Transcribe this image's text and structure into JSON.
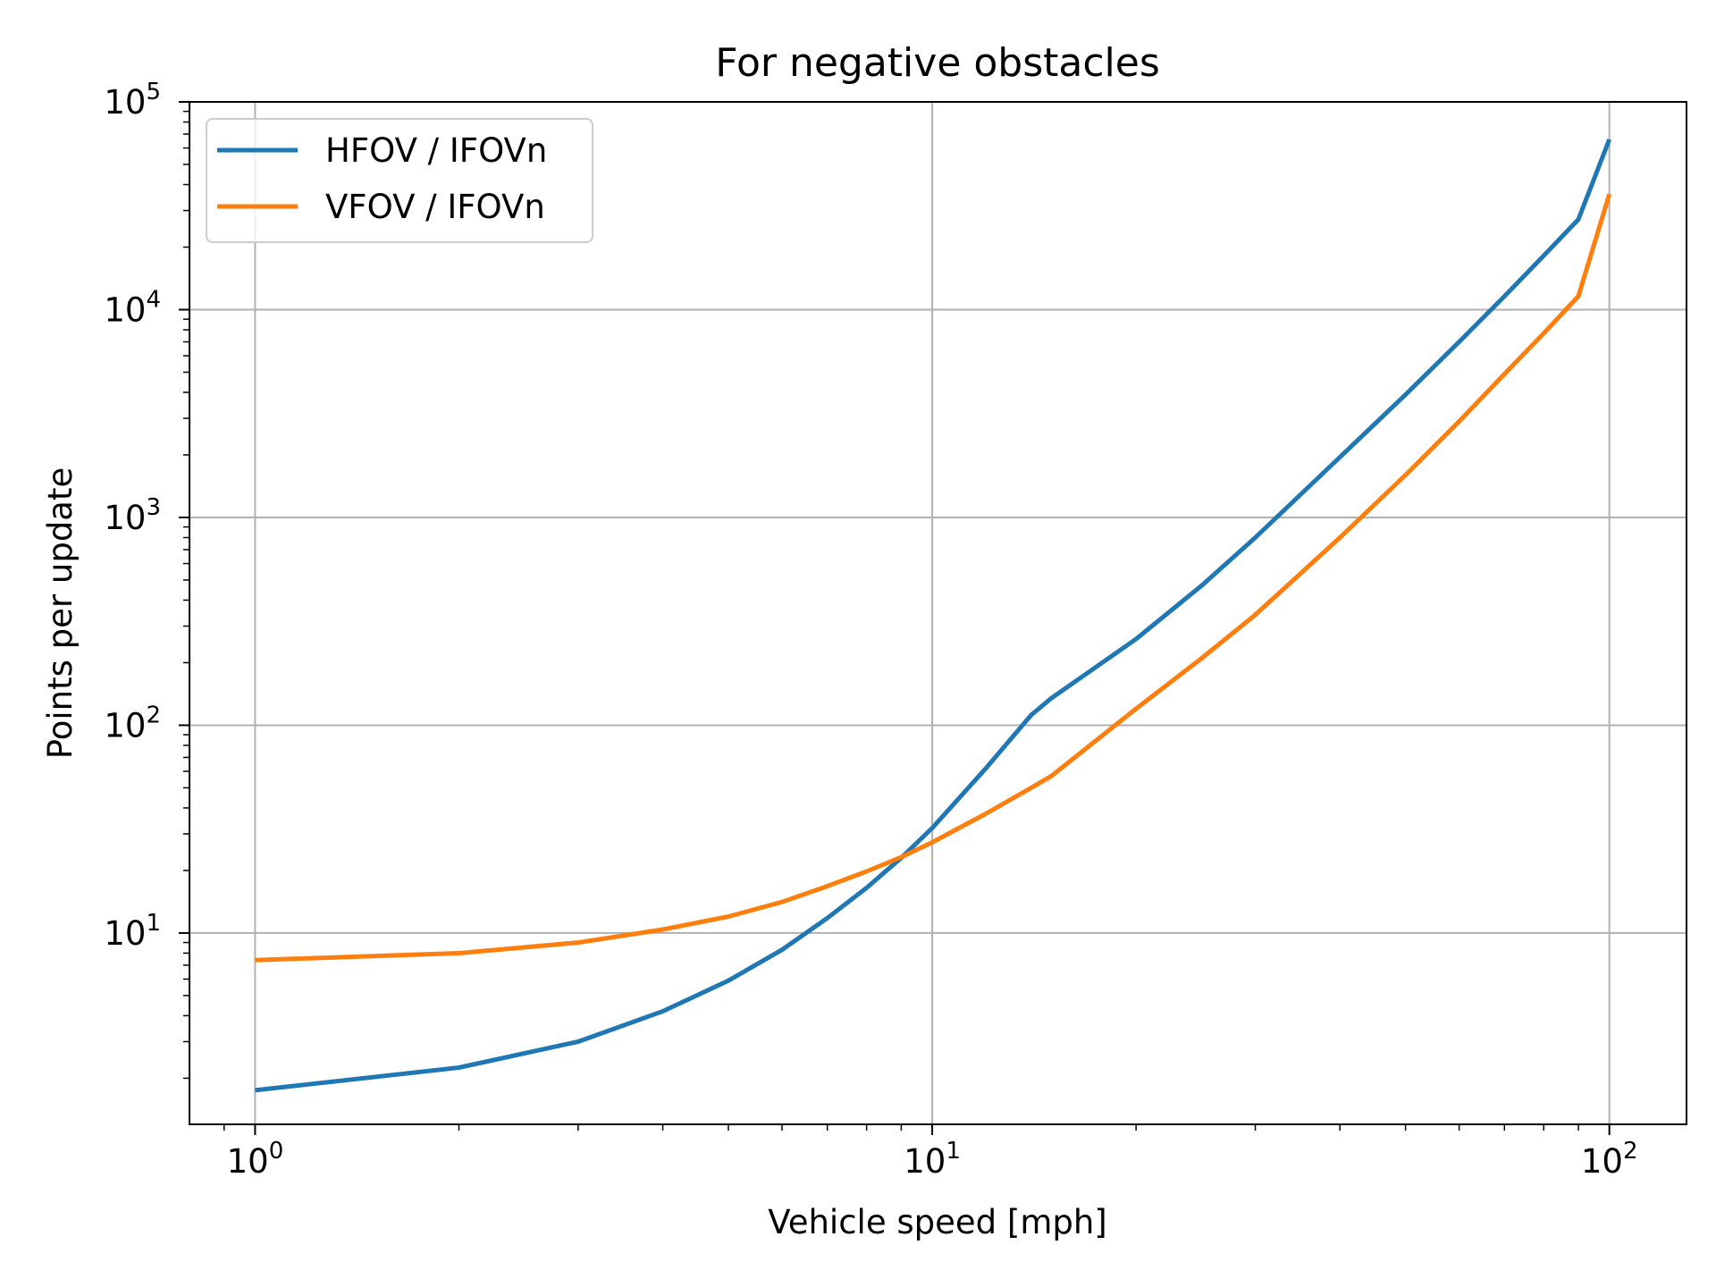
{
  "chart_data": {
    "type": "line",
    "title": "For negative obstacles",
    "xlabel": "Vehicle speed [mph]",
    "ylabel": "Points per update",
    "xscale": "log",
    "yscale": "log",
    "xlim": [
      0.8,
      130
    ],
    "ylim": [
      1.2,
      100000
    ],
    "grid": true,
    "legend_position": "top-left",
    "x_ticks": [
      {
        "value": 1,
        "mantissa": "10",
        "exponent": "0"
      },
      {
        "value": 10,
        "mantissa": "10",
        "exponent": "1"
      },
      {
        "value": 100,
        "mantissa": "10",
        "exponent": "2"
      }
    ],
    "y_ticks": [
      {
        "value": 10,
        "mantissa": "10",
        "exponent": "1"
      },
      {
        "value": 100,
        "mantissa": "10",
        "exponent": "2"
      },
      {
        "value": 1000,
        "mantissa": "10",
        "exponent": "3"
      },
      {
        "value": 10000,
        "mantissa": "10",
        "exponent": "4"
      },
      {
        "value": 100000,
        "mantissa": "10",
        "exponent": "5"
      }
    ],
    "x": [
      1,
      2,
      3,
      4,
      5,
      6,
      7,
      8,
      9,
      10,
      12,
      14,
      15,
      20,
      25,
      30,
      40,
      50,
      60,
      70,
      80,
      90,
      100
    ],
    "series": [
      {
        "name": "HFOV / IFOVn",
        "color": "#1f77b4",
        "values": [
          1.75,
          2.25,
          3.0,
          4.2,
          5.9,
          8.3,
          11.8,
          16.5,
          23,
          32,
          62,
          112,
          135,
          260,
          470,
          800,
          1950,
          3900,
          7000,
          11600,
          18200,
          27200,
          66000
        ]
      },
      {
        "name": "VFOV / IFOVn",
        "color": "#ff7f0e",
        "values": [
          7.4,
          8.0,
          9.0,
          10.4,
          12.0,
          14.1,
          16.8,
          19.8,
          23.2,
          27.3,
          37.5,
          50,
          57,
          120,
          210,
          340,
          800,
          1600,
          2900,
          4900,
          7700,
          11600,
          36000
        ]
      }
    ]
  }
}
